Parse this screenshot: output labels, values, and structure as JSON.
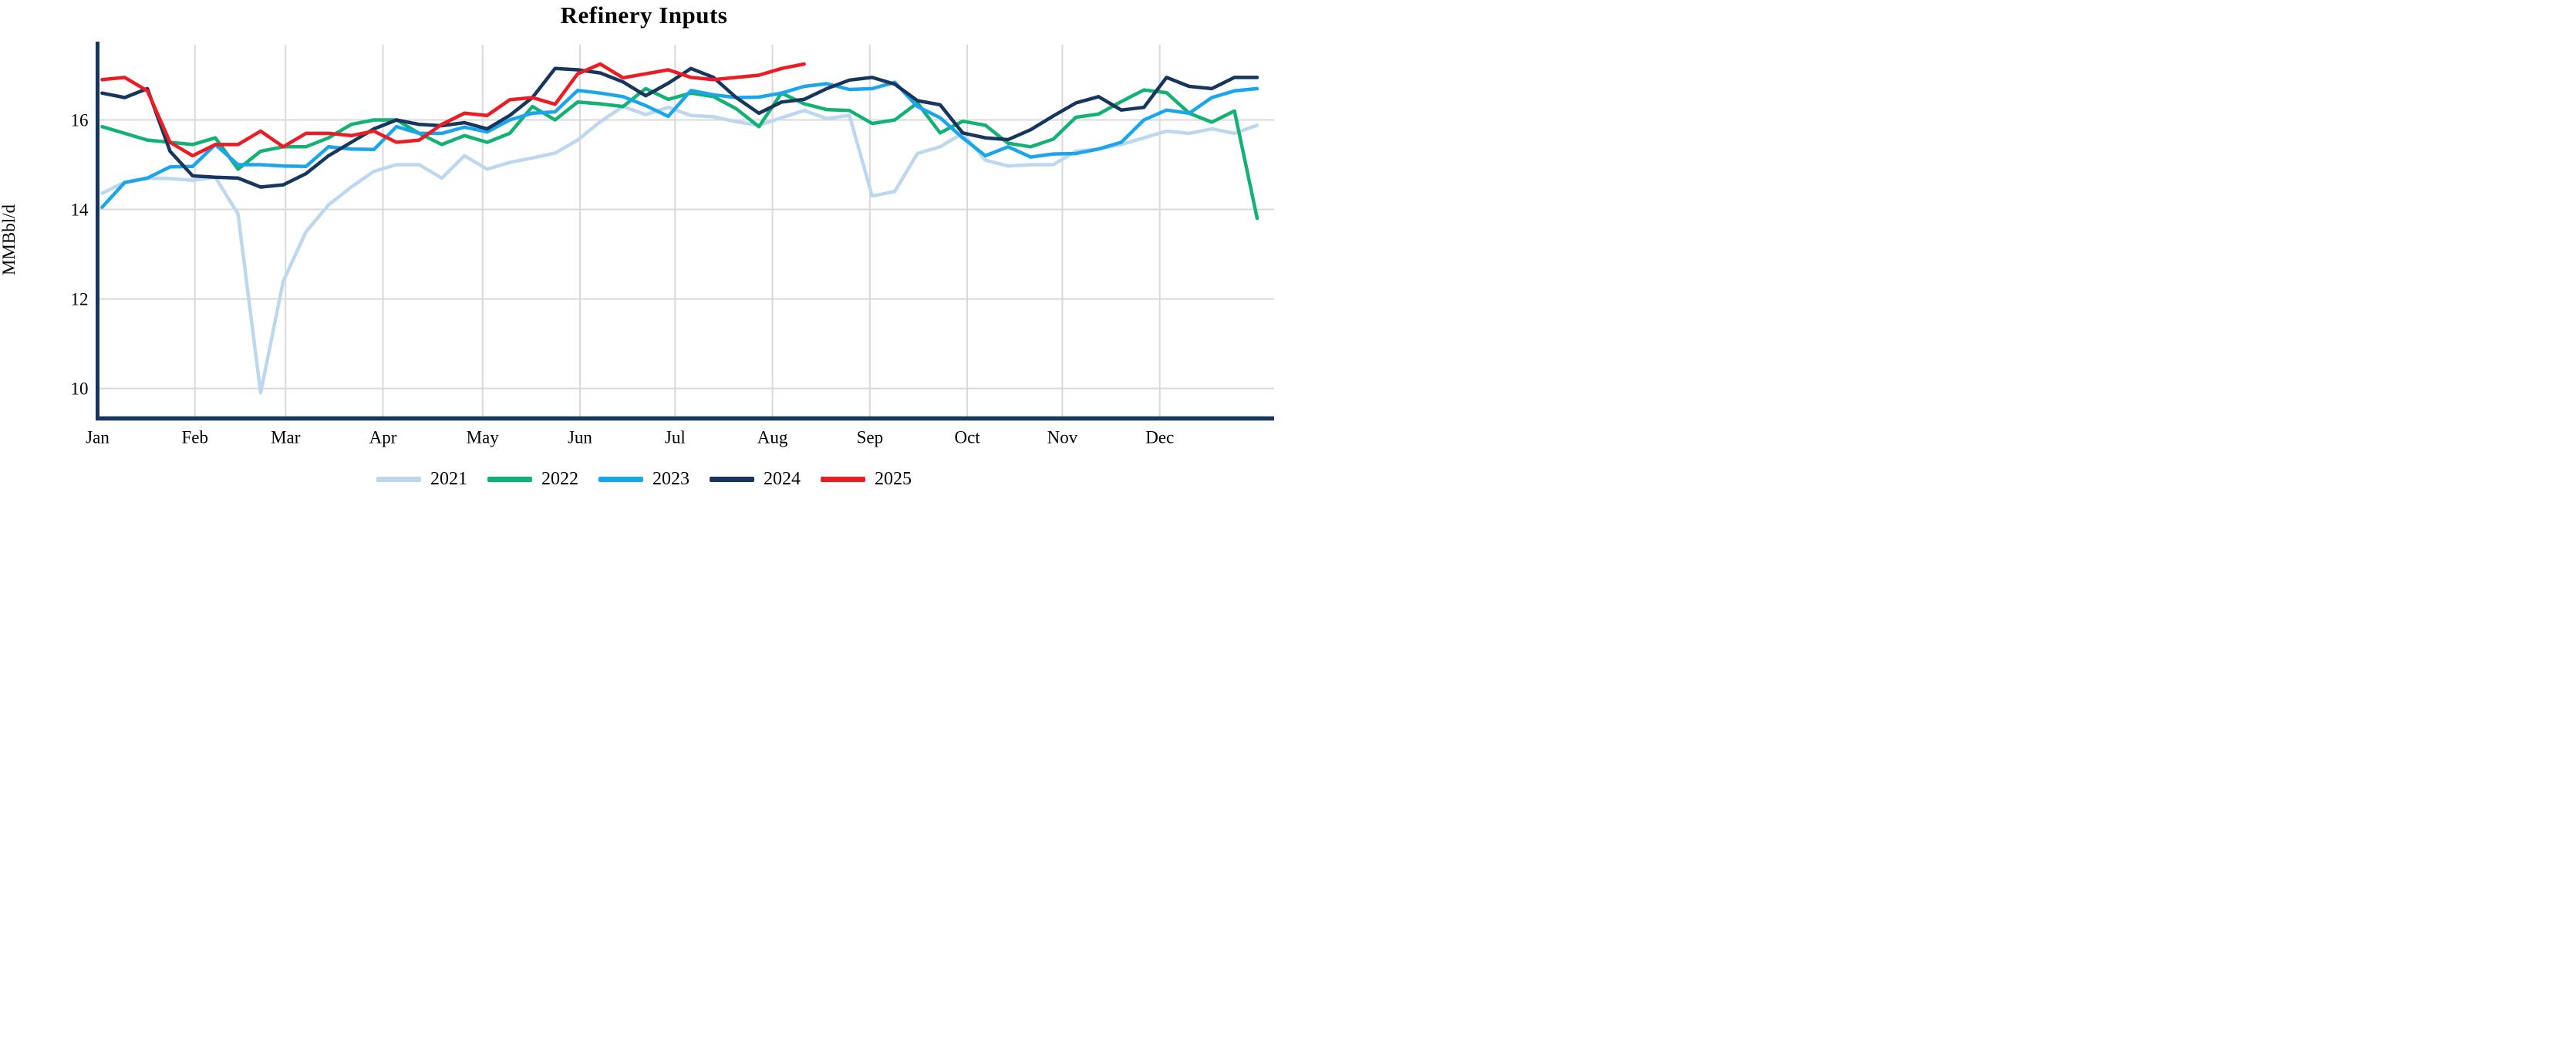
{
  "page": {
    "background": "#ffffff",
    "title": "Refinery Inputs"
  },
  "chart_data": {
    "type": "line",
    "title": "Refinery Inputs",
    "xlabel": "",
    "ylabel": "MMBbl/d",
    "x_unit": "week of year (weekly data)",
    "grid": true,
    "grid_color": "#d9d9d9",
    "axis_color": "#17365d",
    "legend_position": "bottom",
    "ylim": [
      9.33,
      17.68
    ],
    "xlim_weeks": [
      -0.2,
      51.75
    ],
    "y_ticks": [
      10,
      12,
      14,
      16
    ],
    "x_tick_labels": [
      "Jan",
      "Feb",
      "Mar",
      "Apr",
      "May",
      "Jun",
      "Jul",
      "Aug",
      "Sep",
      "Oct",
      "Nov",
      "Dec"
    ],
    "x_tick_week_positions": [
      -0.2,
      4.1,
      8.1,
      12.4,
      16.8,
      21.1,
      25.3,
      29.6,
      33.9,
      38.2,
      42.4,
      46.7
    ],
    "series": [
      {
        "name": "2021",
        "color": "#bdd7ee",
        "values": [
          14.36,
          14.61,
          14.7,
          14.69,
          14.65,
          14.72,
          13.9,
          9.9,
          12.4,
          13.5,
          14.1,
          14.5,
          14.85,
          15.0,
          15.0,
          14.7,
          15.2,
          14.9,
          15.05,
          15.15,
          15.26,
          15.55,
          15.96,
          16.3,
          16.12,
          16.28,
          16.1,
          16.07,
          15.96,
          15.88,
          16.05,
          16.21,
          16.03,
          16.1,
          14.3,
          14.4,
          15.25,
          15.4,
          15.7,
          15.1,
          14.97,
          15.0,
          15.0,
          15.3,
          15.35,
          15.45,
          15.6,
          15.75,
          15.7,
          15.8,
          15.7,
          15.88
        ]
      },
      {
        "name": "2022",
        "color": "#14b175",
        "values": [
          15.85,
          15.7,
          15.55,
          15.5,
          15.45,
          15.6,
          14.9,
          15.3,
          15.4,
          15.4,
          15.6,
          15.9,
          16.0,
          16.0,
          15.7,
          15.45,
          15.65,
          15.5,
          15.7,
          16.3,
          16.0,
          16.4,
          16.36,
          16.3,
          16.7,
          16.46,
          16.6,
          16.52,
          16.25,
          15.85,
          16.6,
          16.36,
          16.23,
          16.21,
          15.92,
          16.0,
          16.38,
          15.71,
          15.97,
          15.88,
          15.48,
          15.4,
          15.57,
          16.06,
          16.13,
          16.41,
          16.67,
          16.61,
          16.15,
          15.95,
          16.2,
          13.8
        ]
      },
      {
        "name": "2023",
        "color": "#1ba6ec",
        "values": [
          14.05,
          14.6,
          14.7,
          14.95,
          14.96,
          15.45,
          15.0,
          15.0,
          14.97,
          14.96,
          15.4,
          15.35,
          15.34,
          15.85,
          15.7,
          15.7,
          15.84,
          15.73,
          16.0,
          16.15,
          16.18,
          16.66,
          16.6,
          16.52,
          16.32,
          16.08,
          16.66,
          16.56,
          16.5,
          16.51,
          16.6,
          16.75,
          16.81,
          16.68,
          16.7,
          16.84,
          16.3,
          16.05,
          15.6,
          15.2,
          15.4,
          15.17,
          15.24,
          15.25,
          15.35,
          15.5,
          16.0,
          16.22,
          16.15,
          16.5,
          16.65,
          16.7
        ]
      },
      {
        "name": "2024",
        "color": "#17365d",
        "values": [
          16.6,
          16.5,
          16.7,
          15.3,
          14.75,
          14.72,
          14.7,
          14.5,
          14.55,
          14.8,
          15.2,
          15.5,
          15.8,
          16.0,
          15.9,
          15.87,
          15.94,
          15.8,
          16.1,
          16.5,
          17.15,
          17.12,
          17.05,
          16.85,
          16.54,
          16.82,
          17.15,
          16.95,
          16.5,
          16.15,
          16.4,
          16.46,
          16.7,
          16.89,
          16.95,
          16.8,
          16.43,
          16.34,
          15.71,
          15.6,
          15.56,
          15.78,
          16.09,
          16.38,
          16.52,
          16.22,
          16.28,
          16.95,
          16.75,
          16.7,
          16.95,
          16.95
        ]
      },
      {
        "name": "2025",
        "color": "#ec1c24",
        "values": [
          16.9,
          16.95,
          16.65,
          15.5,
          15.2,
          15.45,
          15.45,
          15.75,
          15.4,
          15.7,
          15.7,
          15.65,
          15.75,
          15.5,
          15.55,
          15.9,
          16.15,
          16.1,
          16.45,
          16.5,
          16.35,
          17.03,
          17.25,
          16.94,
          17.03,
          17.12,
          16.95,
          16.9,
          16.95,
          17.0,
          17.15,
          17.25
        ]
      }
    ]
  }
}
